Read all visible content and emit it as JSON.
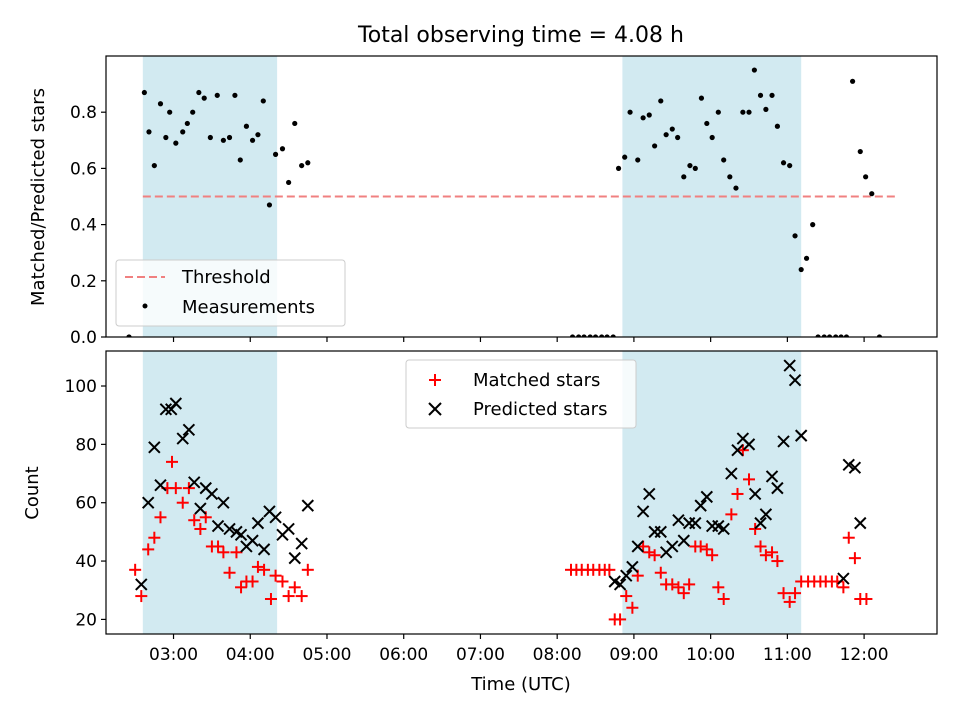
{
  "title": "Total observing time = 4.08 h",
  "colors": {
    "band": "#add8e6",
    "threshold": "#f08080",
    "matched": "#ff0000",
    "predicted": "#000000",
    "measurement": "#000000"
  },
  "chart_data": [
    {
      "type": "scatter",
      "ylabel": "Matched/Predicted stars",
      "xlim": [
        2.12,
        12.95
      ],
      "ylim": [
        0,
        1.0
      ],
      "yticks": [
        0.0,
        0.2,
        0.4,
        0.6,
        0.8
      ],
      "ytick_labels": [
        "0.0",
        "0.2",
        "0.4",
        "0.6",
        "0.8"
      ],
      "shaded_intervals": [
        [
          2.6,
          4.35
        ],
        [
          8.85,
          11.18
        ]
      ],
      "threshold": {
        "name": "Threshold",
        "y": 0.5,
        "x_range": [
          2.6,
          12.45
        ]
      },
      "legend": {
        "position": "lower left",
        "entries": [
          "Threshold",
          "Measurements"
        ]
      },
      "series": [
        {
          "name": "Measurements",
          "marker": "dot",
          "points": [
            [
              2.62,
              0.87
            ],
            [
              2.68,
              0.73
            ],
            [
              2.75,
              0.61
            ],
            [
              2.83,
              0.83
            ],
            [
              2.9,
              0.71
            ],
            [
              2.95,
              0.8
            ],
            [
              3.03,
              0.69
            ],
            [
              3.12,
              0.73
            ],
            [
              3.18,
              0.76
            ],
            [
              3.25,
              0.8
            ],
            [
              3.33,
              0.87
            ],
            [
              3.4,
              0.85
            ],
            [
              3.48,
              0.71
            ],
            [
              3.57,
              0.86
            ],
            [
              3.65,
              0.7
            ],
            [
              3.73,
              0.71
            ],
            [
              3.8,
              0.86
            ],
            [
              3.87,
              0.63
            ],
            [
              3.95,
              0.75
            ],
            [
              4.03,
              0.7
            ],
            [
              4.1,
              0.72
            ],
            [
              4.17,
              0.84
            ],
            [
              4.25,
              0.47
            ],
            [
              4.33,
              0.65
            ],
            [
              4.42,
              0.67
            ],
            [
              4.5,
              0.55
            ],
            [
              4.58,
              0.76
            ],
            [
              4.67,
              0.61
            ],
            [
              4.75,
              0.62
            ],
            [
              8.2,
              0.0
            ],
            [
              8.28,
              0.0
            ],
            [
              8.35,
              0.0
            ],
            [
              8.43,
              0.0
            ],
            [
              8.5,
              0.0
            ],
            [
              8.58,
              0.0
            ],
            [
              8.65,
              0.0
            ],
            [
              8.73,
              0.0
            ],
            [
              8.8,
              0.6
            ],
            [
              8.88,
              0.64
            ],
            [
              8.95,
              0.8
            ],
            [
              9.05,
              0.63
            ],
            [
              9.12,
              0.78
            ],
            [
              9.2,
              0.79
            ],
            [
              9.27,
              0.68
            ],
            [
              9.35,
              0.84
            ],
            [
              9.42,
              0.72
            ],
            [
              9.5,
              0.74
            ],
            [
              9.57,
              0.71
            ],
            [
              9.65,
              0.57
            ],
            [
              9.73,
              0.61
            ],
            [
              9.8,
              0.6
            ],
            [
              9.88,
              0.85
            ],
            [
              9.95,
              0.76
            ],
            [
              10.02,
              0.71
            ],
            [
              10.1,
              0.8
            ],
            [
              10.17,
              0.63
            ],
            [
              10.25,
              0.57
            ],
            [
              10.33,
              0.53
            ],
            [
              10.42,
              0.8
            ],
            [
              10.5,
              0.8
            ],
            [
              10.57,
              0.95
            ],
            [
              10.65,
              0.86
            ],
            [
              10.72,
              0.81
            ],
            [
              10.8,
              0.86
            ],
            [
              10.87,
              0.75
            ],
            [
              10.95,
              0.62
            ],
            [
              11.03,
              0.61
            ],
            [
              11.1,
              0.36
            ],
            [
              11.18,
              0.24
            ],
            [
              11.25,
              0.28
            ],
            [
              11.33,
              0.4
            ],
            [
              11.4,
              0.0
            ],
            [
              11.48,
              0.0
            ],
            [
              11.55,
              0.0
            ],
            [
              11.63,
              0.0
            ],
            [
              11.7,
              0.0
            ],
            [
              11.77,
              0.0
            ],
            [
              11.85,
              0.91
            ],
            [
              11.95,
              0.66
            ],
            [
              12.02,
              0.57
            ],
            [
              12.1,
              0.51
            ],
            [
              12.2,
              0.0
            ],
            [
              2.42,
              0.0
            ]
          ]
        }
      ]
    },
    {
      "type": "scatter",
      "xlabel": "Time (UTC)",
      "ylabel": "Count",
      "xlim": [
        2.12,
        12.95
      ],
      "ylim": [
        15,
        112
      ],
      "yticks": [
        20,
        40,
        60,
        80,
        100
      ],
      "ytick_labels": [
        "20",
        "40",
        "60",
        "80",
        "100"
      ],
      "xticks": [
        3,
        4,
        5,
        6,
        7,
        8,
        9,
        10,
        11,
        12
      ],
      "xtick_labels": [
        "03:00",
        "04:00",
        "05:00",
        "06:00",
        "07:00",
        "08:00",
        "09:00",
        "10:00",
        "11:00",
        "12:00"
      ],
      "shaded_intervals": [
        [
          2.6,
          4.35
        ],
        [
          8.85,
          11.18
        ]
      ],
      "legend": {
        "position": "upper center",
        "entries": [
          "Matched stars",
          "Predicted stars"
        ]
      },
      "series": [
        {
          "name": "Matched stars",
          "marker": "plus",
          "points": [
            [
              2.5,
              37
            ],
            [
              2.58,
              28
            ],
            [
              2.67,
              44
            ],
            [
              2.75,
              48
            ],
            [
              2.83,
              55
            ],
            [
              2.92,
              65
            ],
            [
              2.98,
              74
            ],
            [
              3.03,
              65
            ],
            [
              3.12,
              60
            ],
            [
              3.2,
              65
            ],
            [
              3.27,
              54
            ],
            [
              3.35,
              51
            ],
            [
              3.42,
              55
            ],
            [
              3.5,
              45
            ],
            [
              3.58,
              45
            ],
            [
              3.65,
              43
            ],
            [
              3.73,
              36
            ],
            [
              3.82,
              43
            ],
            [
              3.88,
              31
            ],
            [
              3.95,
              33
            ],
            [
              4.03,
              33
            ],
            [
              4.1,
              38
            ],
            [
              4.18,
              37
            ],
            [
              4.27,
              27
            ],
            [
              4.33,
              35
            ],
            [
              4.42,
              33
            ],
            [
              4.5,
              28
            ],
            [
              4.58,
              31
            ],
            [
              4.67,
              28
            ],
            [
              4.75,
              37
            ],
            [
              8.18,
              37
            ],
            [
              8.25,
              37
            ],
            [
              8.32,
              37
            ],
            [
              8.4,
              37
            ],
            [
              8.47,
              37
            ],
            [
              8.55,
              37
            ],
            [
              8.62,
              37
            ],
            [
              8.68,
              37
            ],
            [
              8.75,
              20
            ],
            [
              8.82,
              20
            ],
            [
              8.9,
              28
            ],
            [
              8.98,
              24
            ],
            [
              9.05,
              35
            ],
            [
              9.12,
              45
            ],
            [
              9.2,
              43
            ],
            [
              9.27,
              42
            ],
            [
              9.35,
              36
            ],
            [
              9.42,
              32
            ],
            [
              9.5,
              32
            ],
            [
              9.58,
              31
            ],
            [
              9.65,
              29
            ],
            [
              9.72,
              32
            ],
            [
              9.8,
              45
            ],
            [
              9.87,
              45
            ],
            [
              9.95,
              44
            ],
            [
              10.02,
              42
            ],
            [
              10.1,
              31
            ],
            [
              10.17,
              27
            ],
            [
              10.27,
              56
            ],
            [
              10.35,
              63
            ],
            [
              10.42,
              78
            ],
            [
              10.5,
              68
            ],
            [
              10.58,
              51
            ],
            [
              10.65,
              45
            ],
            [
              10.72,
              42
            ],
            [
              10.8,
              43
            ],
            [
              10.87,
              40
            ],
            [
              10.95,
              29
            ],
            [
              11.03,
              26
            ],
            [
              11.1,
              29
            ],
            [
              11.18,
              33
            ],
            [
              11.27,
              33
            ],
            [
              11.35,
              33
            ],
            [
              11.43,
              33
            ],
            [
              11.5,
              33
            ],
            [
              11.58,
              33
            ],
            [
              11.65,
              33
            ],
            [
              11.73,
              31
            ],
            [
              11.8,
              48
            ],
            [
              11.88,
              41
            ],
            [
              11.95,
              27
            ],
            [
              12.03,
              27
            ]
          ]
        },
        {
          "name": "Predicted stars",
          "marker": "x",
          "points": [
            [
              2.58,
              32
            ],
            [
              2.67,
              60
            ],
            [
              2.75,
              79
            ],
            [
              2.83,
              66
            ],
            [
              2.9,
              92
            ],
            [
              2.97,
              92
            ],
            [
              3.03,
              94
            ],
            [
              3.12,
              82
            ],
            [
              3.2,
              85
            ],
            [
              3.27,
              67
            ],
            [
              3.35,
              58
            ],
            [
              3.42,
              65
            ],
            [
              3.5,
              63
            ],
            [
              3.58,
              52
            ],
            [
              3.65,
              60
            ],
            [
              3.73,
              51
            ],
            [
              3.82,
              50
            ],
            [
              3.88,
              49
            ],
            [
              3.95,
              45
            ],
            [
              4.03,
              47
            ],
            [
              4.1,
              53
            ],
            [
              4.18,
              44
            ],
            [
              4.25,
              57
            ],
            [
              4.33,
              55
            ],
            [
              4.42,
              49
            ],
            [
              4.5,
              51
            ],
            [
              4.58,
              41
            ],
            [
              4.67,
              46
            ],
            [
              4.75,
              59
            ],
            [
              8.75,
              33
            ],
            [
              8.82,
              32
            ],
            [
              8.9,
              35
            ],
            [
              8.98,
              38
            ],
            [
              9.05,
              45
            ],
            [
              9.12,
              57
            ],
            [
              9.2,
              63
            ],
            [
              9.27,
              50
            ],
            [
              9.35,
              50
            ],
            [
              9.42,
              43
            ],
            [
              9.5,
              45
            ],
            [
              9.58,
              54
            ],
            [
              9.65,
              47
            ],
            [
              9.72,
              53
            ],
            [
              9.8,
              53
            ],
            [
              9.87,
              59
            ],
            [
              9.95,
              62
            ],
            [
              10.02,
              52
            ],
            [
              10.1,
              52
            ],
            [
              10.17,
              51
            ],
            [
              10.27,
              70
            ],
            [
              10.35,
              78
            ],
            [
              10.42,
              82
            ],
            [
              10.5,
              80
            ],
            [
              10.58,
              63
            ],
            [
              10.65,
              53
            ],
            [
              10.72,
              56
            ],
            [
              10.8,
              69
            ],
            [
              10.87,
              65
            ],
            [
              10.95,
              81
            ],
            [
              11.03,
              107
            ],
            [
              11.1,
              102
            ],
            [
              11.18,
              83
            ],
            [
              11.73,
              34
            ],
            [
              11.8,
              73
            ],
            [
              11.88,
              72
            ],
            [
              11.95,
              53
            ]
          ]
        }
      ]
    }
  ]
}
